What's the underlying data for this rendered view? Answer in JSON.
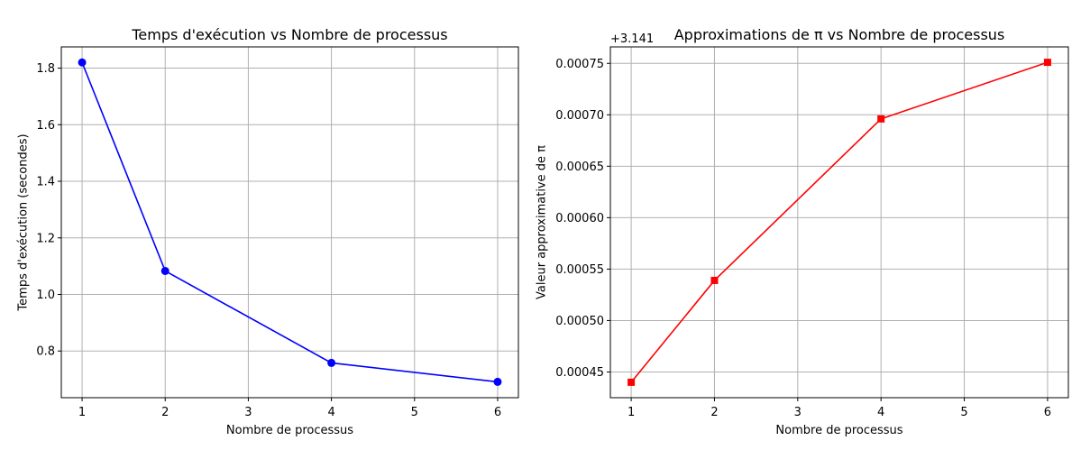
{
  "chart_data": [
    {
      "type": "line",
      "title": "Temps d'exécution vs Nombre de processus",
      "xlabel": "Nombre de processus",
      "ylabel": "Temps d'exécution (secondes)",
      "x": [
        1,
        2,
        4,
        6
      ],
      "series": [
        {
          "values": [
            1.82,
            1.083,
            0.758,
            0.691
          ],
          "color": "#0000ff",
          "marker": "circle"
        }
      ],
      "xlim": [
        0.75,
        6.25
      ],
      "ylim": [
        0.635,
        1.875
      ],
      "xticks": [
        1,
        2,
        3,
        4,
        5,
        6
      ],
      "yticks": [
        0.8,
        1.0,
        1.2,
        1.4,
        1.6,
        1.8
      ],
      "ytick_labels": [
        "0.8",
        "1.0",
        "1.2",
        "1.4",
        "1.6",
        "1.8"
      ],
      "grid": true
    },
    {
      "type": "line",
      "title": "Approximations de π vs Nombre de processus",
      "xlabel": "Nombre de processus",
      "ylabel": "Valeur approximative de π",
      "offset_label": "+3.141",
      "x": [
        1,
        2,
        4,
        6
      ],
      "series": [
        {
          "values": [
            0.00044,
            0.000539,
            0.000696,
            0.000751
          ],
          "color": "#ff0000",
          "marker": "square"
        }
      ],
      "xlim": [
        0.75,
        6.25
      ],
      "ylim": [
        0.000425,
        0.000766
      ],
      "xticks": [
        1,
        2,
        3,
        4,
        5,
        6
      ],
      "yticks": [
        0.00045,
        0.0005,
        0.00055,
        0.0006,
        0.00065,
        0.0007,
        0.00075
      ],
      "ytick_labels": [
        "0.00045",
        "0.00050",
        "0.00055",
        "0.00060",
        "0.00065",
        "0.00070",
        "0.00075"
      ],
      "grid": true
    }
  ]
}
